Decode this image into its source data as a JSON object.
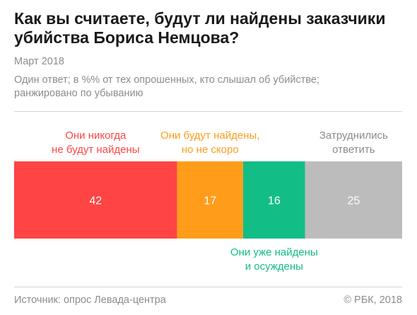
{
  "header": {
    "title": "Как вы считаете, будут ли найдены заказчики убийства Бориса Немцова?",
    "subtitle": "Март 2018",
    "note": "Один ответ; в %% от тех опрошенных, кто слышал об убийстве; ранжировано по убыванию"
  },
  "footer": {
    "source": "Источник: опрос Левада-центра",
    "copyright": "© РБК, 2018"
  },
  "chart_data": {
    "type": "bar",
    "orientation": "horizontal-stacked",
    "total": 100,
    "categories": [
      "Они никогда не будут найдены",
      "Они будут найдены, но не скоро",
      "Они уже найдены и осуждены",
      "Затруднились ответить"
    ],
    "values": [
      42,
      17,
      16,
      25
    ],
    "colors": [
      "#ff4444",
      "#ff9d1b",
      "#13bd86",
      "#bcbcbc"
    ],
    "label_colors": [
      "#ff4444",
      "#ff9d1b",
      "#13bd86",
      "#8c8c8c"
    ],
    "label_lines": [
      [
        "Они никогда",
        "не будут найдены"
      ],
      [
        "Они будут найдены,",
        "но не скоро"
      ],
      [
        "Они уже найдены",
        "и осуждены"
      ],
      [
        "Затруднились",
        "ответить"
      ]
    ],
    "label_placement": [
      "above",
      "above",
      "below",
      "above"
    ]
  }
}
